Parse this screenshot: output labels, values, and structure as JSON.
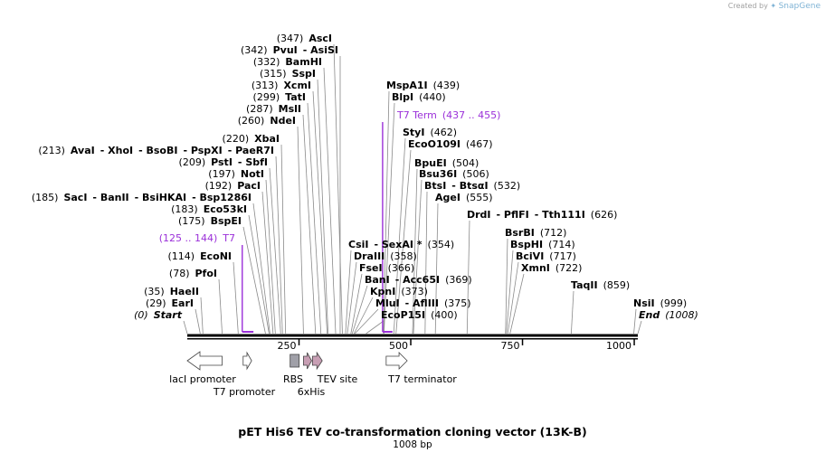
{
  "branding": {
    "created_by": "Created by",
    "brand": "SnapGene"
  },
  "map": {
    "title": "pET His6 TEV co-transformation cloning vector (13K-B)",
    "length_label": "1008 bp",
    "length": 1008
  },
  "axis": {
    "ticks": [
      {
        "pos": 250,
        "label": "250"
      },
      {
        "pos": 500,
        "label": "500"
      },
      {
        "pos": 750,
        "label": "750"
      },
      {
        "pos": 1000,
        "label": "1000"
      }
    ]
  },
  "sites": [
    {
      "parts": [
        "(347)",
        "AscI"
      ],
      "bold": [
        false,
        true
      ],
      "pos": 347
    },
    {
      "parts": [
        "(342)",
        "PvuI",
        "- AsiSI"
      ],
      "bold": [
        false,
        true,
        true
      ],
      "pos": 342
    },
    {
      "parts": [
        "(332)",
        "BamHI"
      ],
      "bold": [
        false,
        true
      ],
      "pos": 332
    },
    {
      "parts": [
        "(315)",
        "SspI"
      ],
      "bold": [
        false,
        true
      ],
      "pos": 315
    },
    {
      "parts": [
        "(313)",
        "XcmI"
      ],
      "bold": [
        false,
        true
      ],
      "pos": 313
    },
    {
      "parts": [
        "(299)",
        "TatI"
      ],
      "bold": [
        false,
        true
      ],
      "pos": 299
    },
    {
      "parts": [
        "(287)",
        "MslI"
      ],
      "bold": [
        false,
        true
      ],
      "pos": 287
    },
    {
      "parts": [
        "(260)",
        "NdeI"
      ],
      "bold": [
        false,
        true
      ],
      "pos": 260
    },
    {
      "parts": [
        "(220)",
        "XbaI"
      ],
      "bold": [
        false,
        true
      ],
      "pos": 220
    },
    {
      "parts": [
        "(213)",
        "AvaI",
        "- XhoI",
        "- BsoBI",
        "- PspXI",
        "- PaeR7I"
      ],
      "bold": [
        false,
        true,
        true,
        true,
        true,
        true
      ],
      "pos": 213
    },
    {
      "parts": [
        "(209)",
        "PstI",
        "- SbfI"
      ],
      "bold": [
        false,
        true,
        true
      ],
      "pos": 209
    },
    {
      "parts": [
        "(197)",
        "NotI"
      ],
      "bold": [
        false,
        true
      ],
      "pos": 197
    },
    {
      "parts": [
        "(192)",
        "PacI"
      ],
      "bold": [
        false,
        true
      ],
      "pos": 192
    },
    {
      "parts": [
        "(185)",
        "SacI",
        "- BanII",
        "- BsiHKAI",
        "- Bsp1286I"
      ],
      "bold": [
        false,
        true,
        true,
        true,
        true
      ],
      "pos": 185
    },
    {
      "parts": [
        "(183)",
        "Eco53kI"
      ],
      "bold": [
        false,
        true
      ],
      "pos": 183
    },
    {
      "parts": [
        "(175)",
        "BspEI"
      ],
      "bold": [
        false,
        true
      ],
      "pos": 175
    },
    {
      "parts": [
        "(114)",
        "EcoNI"
      ],
      "bold": [
        false,
        true
      ],
      "pos": 114
    },
    {
      "parts": [
        "(78)",
        "PfoI"
      ],
      "bold": [
        false,
        true
      ],
      "pos": 78
    },
    {
      "parts": [
        "(35)",
        "HaeII"
      ],
      "bold": [
        false,
        true
      ],
      "pos": 35
    },
    {
      "parts": [
        "(29)",
        "EarI"
      ],
      "bold": [
        false,
        true
      ],
      "pos": 29
    },
    {
      "parts": [
        "(0)",
        "Start"
      ],
      "bold": [
        false,
        true
      ],
      "pos": 0
    },
    {
      "parts": [
        "MspA1I",
        "(439)"
      ],
      "bold": [
        true,
        false
      ],
      "pos": 439
    },
    {
      "parts": [
        "BlpI",
        "(440)"
      ],
      "bold": [
        true,
        false
      ],
      "pos": 440
    },
    {
      "parts": [
        "StyI",
        "(462)"
      ],
      "bold": [
        true,
        false
      ],
      "pos": 462
    },
    {
      "parts": [
        "EcoO109I",
        "(467)"
      ],
      "bold": [
        true,
        false
      ],
      "pos": 467
    },
    {
      "parts": [
        "BpuEI",
        "(504)"
      ],
      "bold": [
        true,
        false
      ],
      "pos": 504
    },
    {
      "parts": [
        "Bsu36I",
        "(506)"
      ],
      "bold": [
        true,
        false
      ],
      "pos": 506
    },
    {
      "parts": [
        "BtsI",
        "- BtsαI",
        "(532)"
      ],
      "bold": [
        true,
        true,
        false
      ],
      "pos": 532
    },
    {
      "parts": [
        "AgeI",
        "(555)"
      ],
      "bold": [
        true,
        false
      ],
      "pos": 555
    },
    {
      "parts": [
        "DrdI",
        "- PflFI",
        "- Tth111I",
        "(626)"
      ],
      "bold": [
        true,
        true,
        true,
        false
      ],
      "pos": 626
    },
    {
      "parts": [
        "CsiI",
        "- SexAI *",
        "(354)"
      ],
      "bold": [
        true,
        true,
        false
      ],
      "pos": 354
    },
    {
      "parts": [
        "DraIII",
        "(358)"
      ],
      "bold": [
        true,
        false
      ],
      "pos": 358
    },
    {
      "parts": [
        "FseI",
        "(366)"
      ],
      "bold": [
        true,
        false
      ],
      "pos": 366
    },
    {
      "parts": [
        "BanI",
        "- Acc65I",
        "(369)"
      ],
      "bold": [
        true,
        true,
        false
      ],
      "pos": 369
    },
    {
      "parts": [
        "KpnI",
        "(373)"
      ],
      "bold": [
        true,
        false
      ],
      "pos": 373
    },
    {
      "parts": [
        "MluI",
        "- AflIII",
        "(375)"
      ],
      "bold": [
        true,
        true,
        false
      ],
      "pos": 375
    },
    {
      "parts": [
        "EcoP15I",
        "(400)"
      ],
      "bold": [
        true,
        false
      ],
      "pos": 400
    },
    {
      "parts": [
        "BsrBI",
        "(712)"
      ],
      "bold": [
        true,
        false
      ],
      "pos": 712
    },
    {
      "parts": [
        "BspHI",
        "(714)"
      ],
      "bold": [
        true,
        false
      ],
      "pos": 714
    },
    {
      "parts": [
        "BciVI",
        "(717)"
      ],
      "bold": [
        true,
        false
      ],
      "pos": 717
    },
    {
      "parts": [
        "XmnI",
        "(722)"
      ],
      "bold": [
        true,
        false
      ],
      "pos": 722
    },
    {
      "parts": [
        "TaqII",
        "(859)"
      ],
      "bold": [
        true,
        false
      ],
      "pos": 859
    },
    {
      "parts": [
        "NsiI",
        "(999)"
      ],
      "bold": [
        true,
        false
      ],
      "pos": 999
    },
    {
      "parts": [
        "End",
        "(1008)"
      ],
      "bold": [
        true,
        false
      ],
      "pos": 1008
    }
  ],
  "primer_sites": [
    {
      "parts": [
        "(125 .. 144)",
        "T7"
      ],
      "start": 125,
      "end": 144,
      "color": "#9b30d9"
    },
    {
      "parts": [
        "T7 Term",
        "(437 .. 455)"
      ],
      "start": 437,
      "end": 455,
      "color": "#9b30d9"
    }
  ],
  "features": [
    {
      "label": "lacI promoter",
      "start": 0,
      "end": 80,
      "type": "arrow-left",
      "color": "#ffffff"
    },
    {
      "label": "T7 promoter",
      "start": 125,
      "end": 144,
      "type": "arrow-right",
      "color": "#ffffff"
    },
    {
      "label": "RBS",
      "start": 222,
      "end": 250,
      "type": "box",
      "color": "#a0a0a8"
    },
    {
      "label": "6xHis",
      "start": 260,
      "end": 278,
      "type": "arrow-right",
      "color": "#c89fb4"
    },
    {
      "label": "TEV site",
      "start": 280,
      "end": 302,
      "type": "arrow-right",
      "color": "#c89fb4"
    },
    {
      "label": "T7 terminator",
      "start": 445,
      "end": 492,
      "type": "arrow-right",
      "color": "#ffffff"
    }
  ]
}
